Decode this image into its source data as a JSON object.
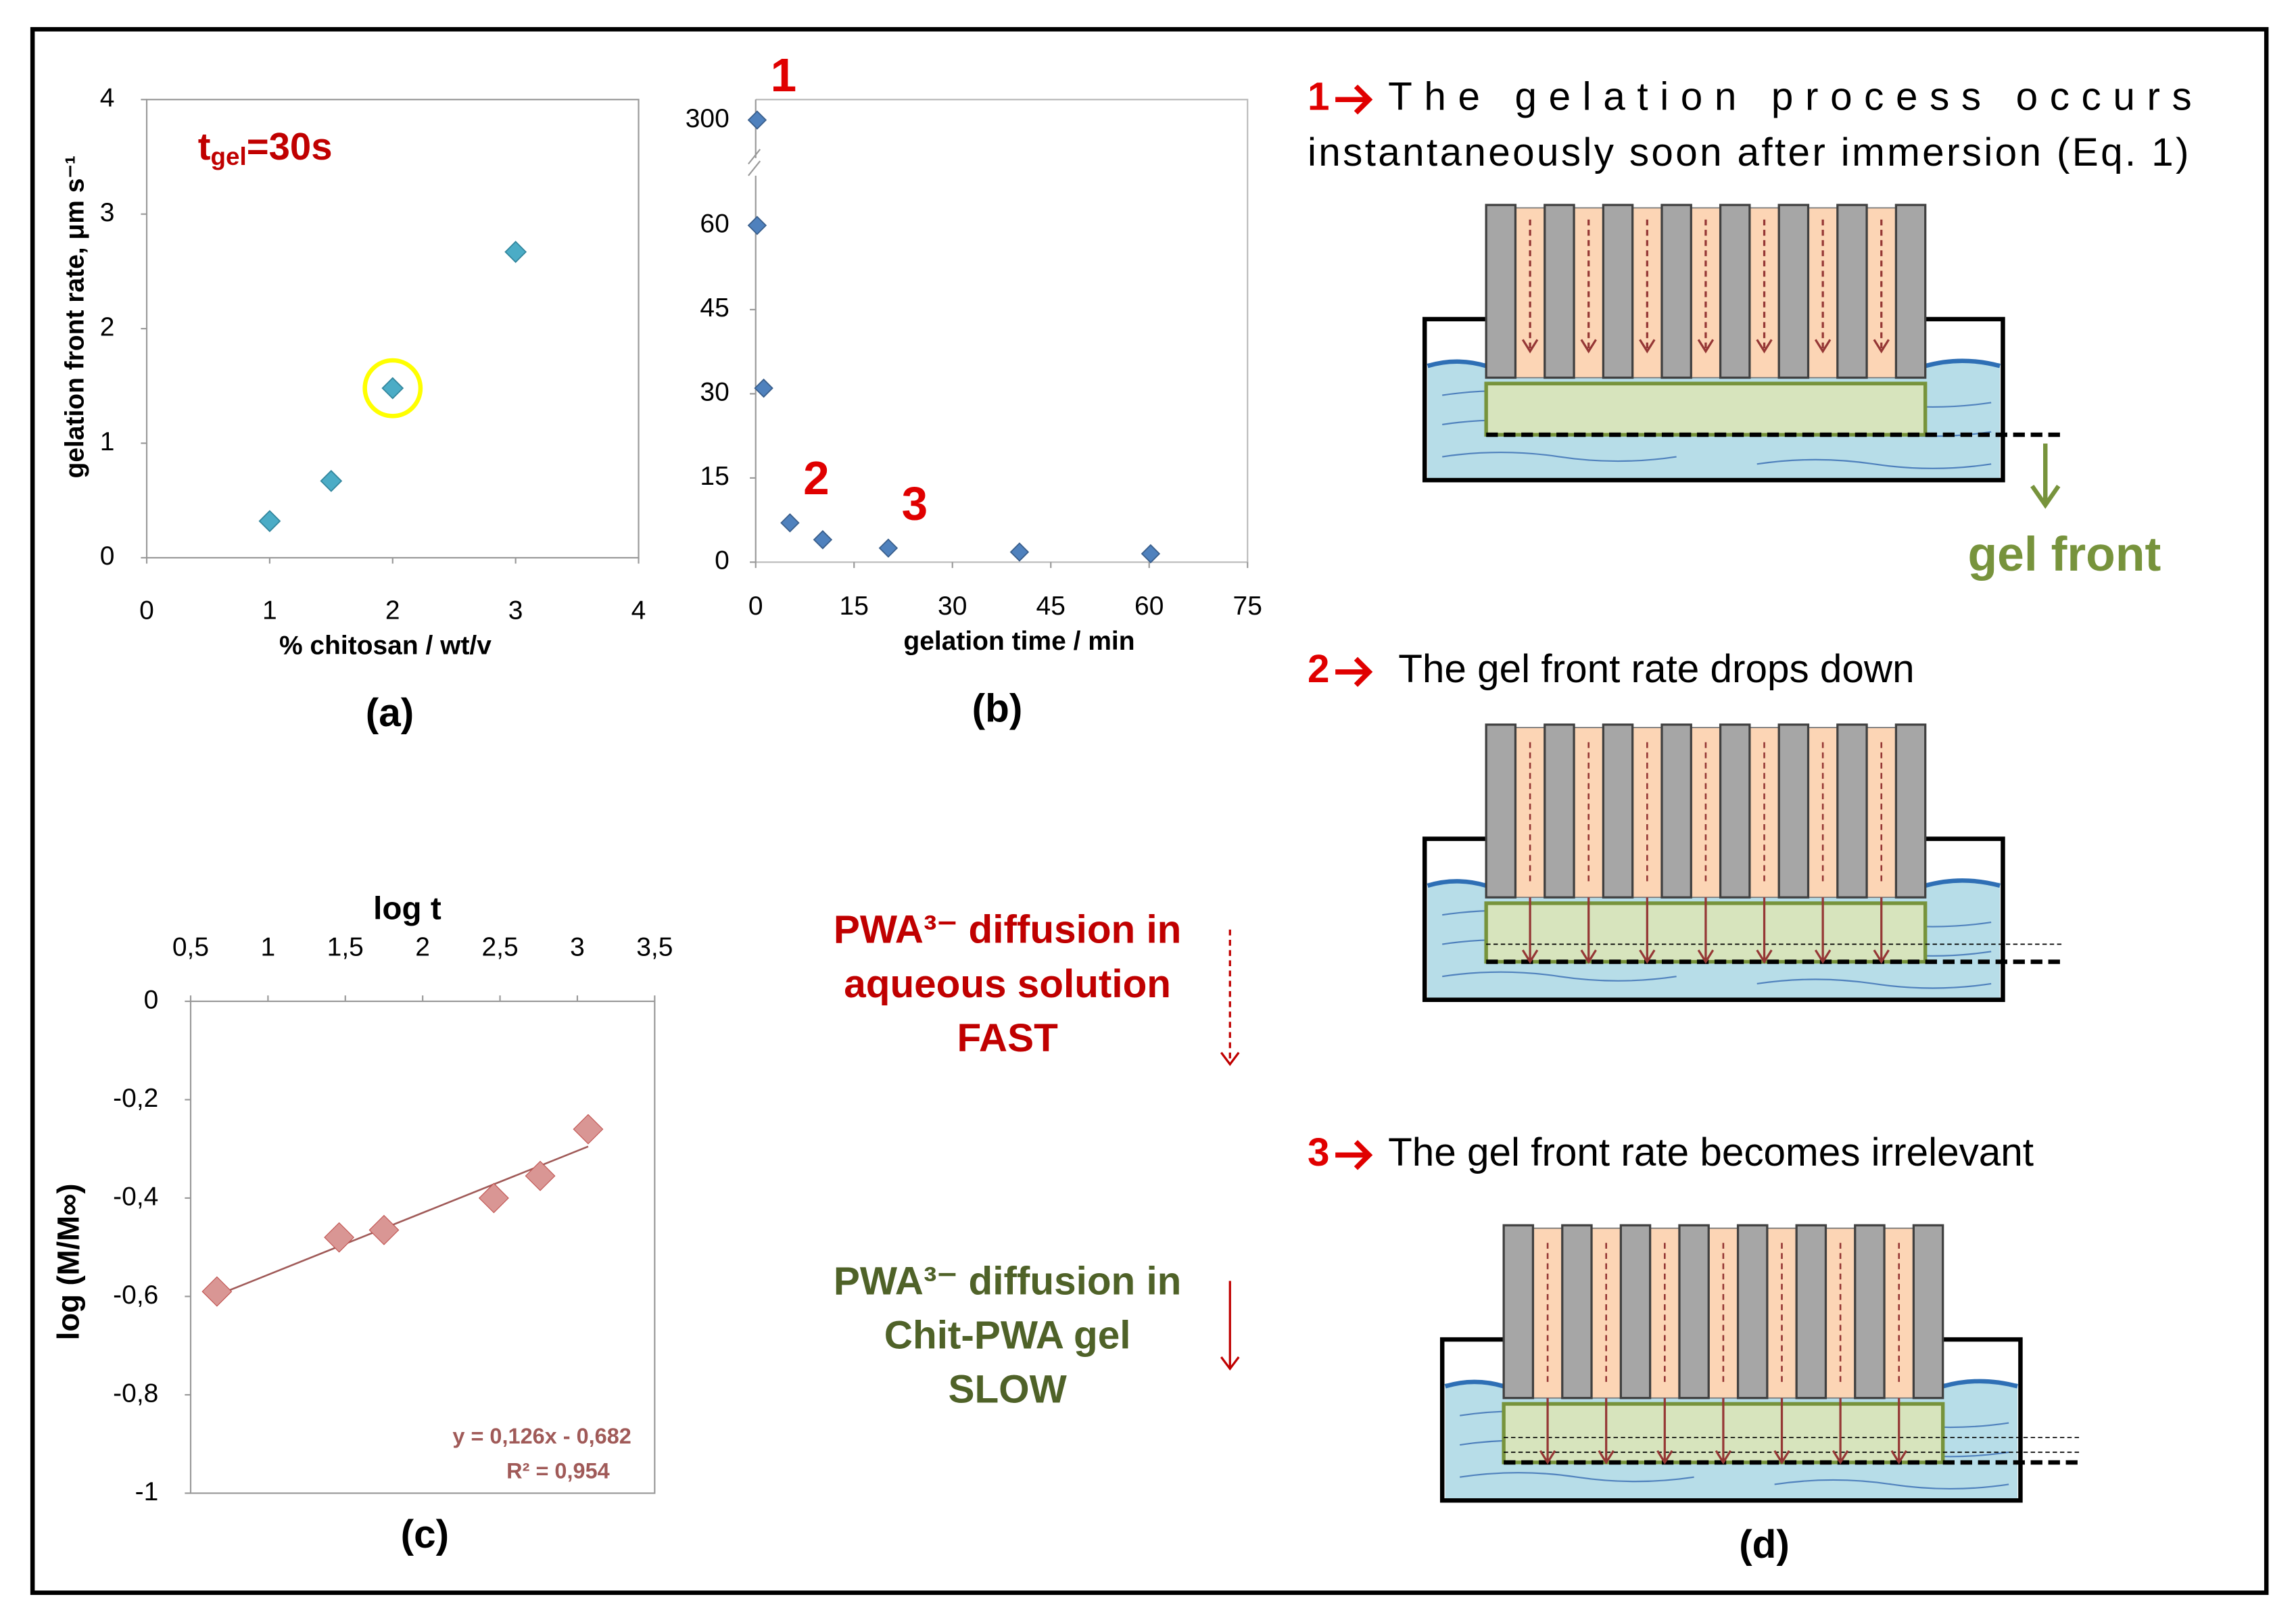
{
  "chart_data": [
    {
      "type": "scatter",
      "x_label": "% chitosan / wt/v",
      "y_label": "gelation front rate, μm s⁻¹",
      "annotation": {
        "t": "t",
        "sub": "gel",
        "rest": "=30s"
      },
      "x": [
        1,
        1.5,
        2,
        3
      ],
      "values": [
        0.32,
        0.67,
        1.48,
        2.67
      ],
      "color": "#4bacc6",
      "xlim": [
        0,
        4
      ],
      "xticks": [
        0,
        1,
        2,
        3,
        4
      ],
      "ylim": [
        0,
        4
      ],
      "yticks": [
        0,
        1,
        2,
        3,
        4
      ],
      "highlight": {
        "index": 2,
        "color": "#ffff00"
      },
      "panel_label": "(a)"
    },
    {
      "type": "scatter",
      "x_label": "gelation time / min",
      "x": [
        0,
        0,
        1,
        5,
        10,
        20,
        40,
        60
      ],
      "values": [
        300,
        60,
        31,
        7,
        4,
        2.5,
        1.8,
        1.5
      ],
      "color": "#4f81bd",
      "xlim": [
        0,
        75
      ],
      "xticks": [
        0,
        15,
        30,
        45,
        60,
        75
      ],
      "ylim": [
        0,
        300
      ],
      "yticks": [
        0,
        15,
        30,
        45,
        60,
        300
      ],
      "y_break": [
        60,
        300
      ],
      "annotations": [
        {
          "text": "1",
          "point": 0
        },
        {
          "text": "2",
          "point": 3
        },
        {
          "text": "3",
          "point": 5
        }
      ],
      "panel_label": "(b)"
    },
    {
      "type": "scatter",
      "x_label": "log t",
      "y_label": "log (M/M∞)",
      "x": [
        0.67,
        1.46,
        1.75,
        2.46,
        2.76,
        3.07
      ],
      "values": [
        -0.59,
        -0.48,
        -0.465,
        -0.4,
        -0.355,
        -0.26
      ],
      "color": "#d99694",
      "xlim": [
        0.5,
        3.5
      ],
      "xticks": [
        {
          "value": 0.5,
          "label": "0,5"
        },
        1,
        {
          "value": 1.5,
          "label": "1,5"
        },
        2,
        {
          "value": 2.5,
          "label": "2,5"
        },
        3,
        {
          "value": 3.5,
          "label": "3,5"
        }
      ],
      "ylim": [
        -1,
        0
      ],
      "yticks": [
        0,
        {
          "value": -0.2,
          "label": "-0,2"
        },
        {
          "value": -0.4,
          "label": "-0,4"
        },
        {
          "value": -0.6,
          "label": "-0,6"
        },
        {
          "value": -0.8,
          "label": "-0,8"
        },
        -1
      ],
      "x_axis_position": "top",
      "trendline": {
        "slope": 0.126,
        "intercept": -0.682,
        "color": "#a05a58",
        "equation_label": "y = 0,126x - 0,682",
        "r2_label": "R² = 0,954"
      },
      "panel_label": "(c)"
    }
  ],
  "diffusion": {
    "fast": {
      "lines": [
        "PWA³⁻ diffusion in",
        "aqueous solution",
        "FAST"
      ],
      "color": "#c00000"
    },
    "slow": {
      "lines": [
        "PWA³⁻ diffusion in",
        "Chit-PWA gel",
        "SLOW"
      ],
      "color": "#4f6228"
    }
  },
  "diagram": {
    "panel_label": "(d)",
    "steps": [
      {
        "number": "1",
        "lines": [
          "The gelation process occurs",
          "instantaneously soon after immersion (Eq. 1)"
        ]
      },
      {
        "number": "2",
        "lines": [
          "The gel front rate drops down"
        ]
      },
      {
        "number": "3",
        "lines": [
          "The gel front rate becomes irrelevant"
        ]
      }
    ],
    "gel_front_label": "gel front"
  }
}
